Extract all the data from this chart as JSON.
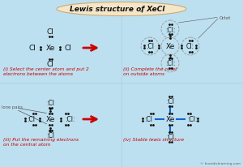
{
  "title_text": "Lewis structure of XeCl",
  "title_sub": "4",
  "bg_color": "#bde0f0",
  "title_bg": "#f5e6c8",
  "title_edge": "#ccaa77",
  "arrow_color": "#cc0000",
  "bond_color": "#1166cc",
  "text_color": "#111111",
  "caption_color": "#cc0000",
  "dot_color": "#111111",
  "circle_color": "#999999",
  "ann_color": "#555555",
  "watermark": "© knordislearning.com",
  "step1_caption_l1": "(i) Select the center atom and put 2",
  "step1_caption_l2": "electrons between the atoms",
  "step2_caption_l1": "(ii) Complete the octet",
  "step2_caption_l2": "on outside atoms",
  "step3_caption_l1": "(iii) Put the remaining electrons",
  "step3_caption_l2": "on the central atom",
  "step4_caption": "(iv) Stable lewis structure",
  "lone_pairs_label": "lone pairs",
  "octet_label": "Octet"
}
